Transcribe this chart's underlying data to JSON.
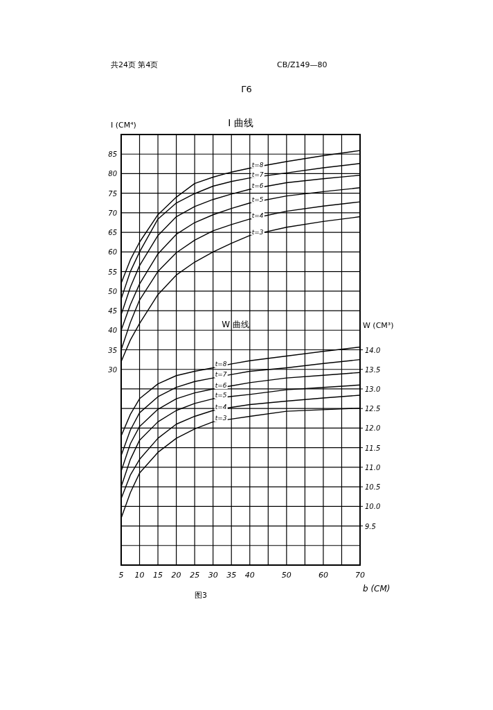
{
  "chart_data": {
    "type": "line",
    "title": "I 曲线",
    "xlabel": "b (CM)",
    "ylabel": "I (CM⁴)",
    "y2label": "W (CM³)",
    "x": [
      5,
      7.5,
      10,
      15,
      20,
      25,
      30,
      35,
      40,
      50,
      60,
      70
    ],
    "xlim": [
      5,
      70
    ],
    "xticks": [
      5,
      10,
      15,
      20,
      25,
      30,
      35,
      40,
      {
        "value": 45,
        "label": null
      },
      50,
      {
        "value": 55,
        "label": null
      },
      60,
      {
        "value": 65,
        "label": null
      },
      70
    ],
    "ylim": [
      -20,
      90
    ],
    "yticks": [
      {
        "value": -15,
        "label": null
      },
      {
        "value": -10,
        "label": null
      },
      {
        "value": -5,
        "label": null
      },
      {
        "value": 0,
        "label": null
      },
      {
        "value": 5,
        "label": null
      },
      {
        "value": 10,
        "label": null
      },
      {
        "value": 15,
        "label": null
      },
      {
        "value": 20,
        "label": null
      },
      {
        "value": 25,
        "label": null
      },
      30,
      35,
      40,
      45,
      50,
      55,
      60,
      65,
      70,
      75,
      80,
      85
    ],
    "y2lim": [
      8.5,
      19.5
    ],
    "y2ticks": [
      9.5,
      {
        "value": 10,
        "label": "10.0"
      },
      10.5,
      {
        "value": 11,
        "label": "11.0"
      },
      11.5,
      {
        "value": 12,
        "label": "12.0"
      },
      12.5,
      {
        "value": 13,
        "label": "13.0"
      },
      13.5,
      {
        "value": 14,
        "label": "14.0"
      }
    ],
    "grid": true,
    "marker": "none",
    "line_style": "solid",
    "series": [
      {
        "name": "t=8",
        "color": "#000000",
        "values": [
          52,
          58,
          62.5,
          69.5,
          74,
          77.5,
          79.1,
          80.4,
          81.4,
          83.1,
          84.6,
          85.9
        ]
      },
      {
        "name": "t=7",
        "color": "#000000",
        "values": [
          48,
          55,
          60,
          68.4,
          72.5,
          74.9,
          76.8,
          78,
          78.9,
          80.2,
          81.5,
          82.6
        ]
      },
      {
        "name": "t=6",
        "color": "#000000",
        "values": [
          44,
          51,
          56.5,
          64.2,
          69,
          71.6,
          73.4,
          74.8,
          76,
          77.7,
          78.7,
          79.6
        ]
      },
      {
        "name": "t=5",
        "color": "#000000",
        "values": [
          40,
          46.5,
          51.8,
          59.5,
          64.5,
          67.5,
          69.5,
          71.1,
          72.5,
          74.3,
          75.4,
          76.4
        ]
      },
      {
        "name": "t=4",
        "color": "#000000",
        "values": [
          35,
          42,
          47.7,
          55,
          59.8,
          63,
          65.4,
          67,
          68.4,
          70.4,
          71.7,
          72.8
        ]
      },
      {
        "name": "t=3",
        "color": "#000000",
        "values": [
          32,
          37.5,
          41.7,
          49.1,
          54.1,
          57.4,
          60,
          62.2,
          64.2,
          66.3,
          67.8,
          69
        ]
      },
      {
        "name": "t=8",
        "color": "#000000",
        "axis": "y2",
        "values": [
          11.8,
          12.35,
          12.75,
          13.13,
          13.34,
          13.45,
          13.54,
          13.64,
          13.72,
          13.84,
          13.96,
          14.07
        ]
      },
      {
        "name": "t=7",
        "color": "#000000",
        "axis": "y2",
        "values": [
          11.3,
          11.95,
          12.39,
          12.8,
          13.04,
          13.19,
          13.28,
          13.37,
          13.45,
          13.54,
          13.65,
          13.75
        ]
      },
      {
        "name": "t=6",
        "color": "#000000",
        "axis": "y2",
        "values": [
          10.9,
          11.6,
          12.04,
          12.48,
          12.75,
          12.9,
          13.0,
          13.08,
          13.16,
          13.28,
          13.35,
          13.42
        ]
      },
      {
        "name": "t=5",
        "color": "#000000",
        "axis": "y2",
        "values": [
          10.5,
          11.2,
          11.69,
          12.16,
          12.45,
          12.63,
          12.75,
          12.81,
          12.86,
          12.98,
          13.04,
          13.1
        ]
      },
      {
        "name": "t=4",
        "color": "#000000",
        "axis": "y2",
        "values": [
          10.2,
          10.8,
          11.2,
          11.74,
          12.1,
          12.3,
          12.45,
          12.53,
          12.6,
          12.69,
          12.77,
          12.84
        ]
      },
      {
        "name": "t=3",
        "color": "#000000",
        "axis": "y2",
        "values": [
          9.7,
          10.35,
          10.85,
          11.38,
          11.74,
          11.98,
          12.16,
          12.23,
          12.3,
          12.43,
          12.47,
          12.51
        ]
      }
    ],
    "annotations": [
      "共24页 第4页",
      "CB/Z149—80",
      "Γ6",
      "W 曲线",
      "图3"
    ]
  }
}
